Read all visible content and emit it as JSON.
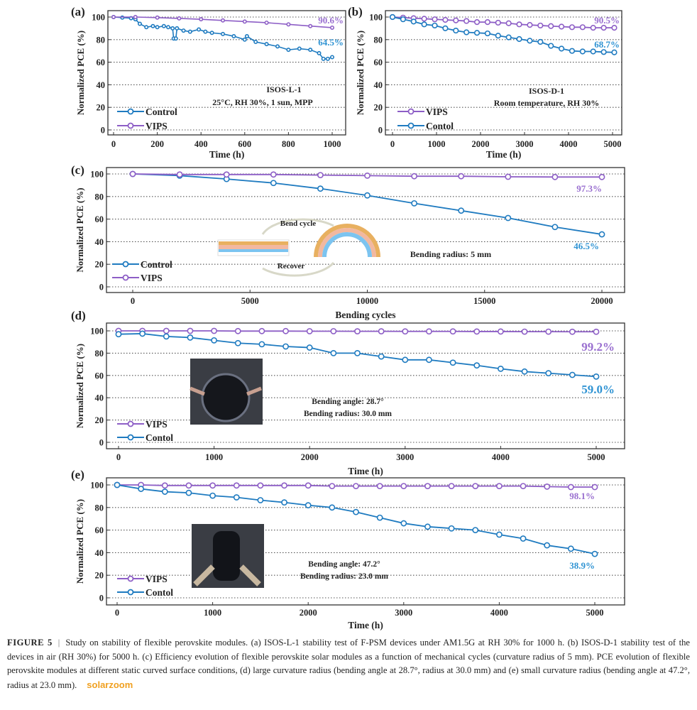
{
  "colors": {
    "control": "#1f7bc0",
    "vips": "#8d5ec6",
    "control_label": "#2f93d3",
    "vips_label": "#9a70d0",
    "grid": "#555555"
  },
  "chart_data": [
    {
      "panel": "(a)",
      "type": "line",
      "xlabel": "Time (h)",
      "ylabel": "Normalized PCE (%)",
      "xlim": [
        0,
        1000
      ],
      "ylim": [
        0,
        100
      ],
      "xticks": [
        0,
        200,
        400,
        600,
        800,
        1000
      ],
      "yticks": [
        0,
        20,
        40,
        60,
        80,
        100
      ],
      "grid": "horizontal dotted",
      "legend_placement": "bottom-left",
      "series": [
        {
          "name": "Control",
          "color_key": "control",
          "x": [
            0,
            40,
            80,
            100,
            120,
            150,
            180,
            200,
            230,
            250,
            270,
            275,
            285,
            290,
            320,
            350,
            390,
            420,
            450,
            500,
            550,
            600,
            610,
            650,
            700,
            750,
            800,
            850,
            900,
            940,
            960,
            980,
            1000
          ],
          "y": [
            100,
            99.5,
            99,
            98,
            94,
            91,
            92,
            91,
            92,
            91,
            90,
            81,
            81,
            90,
            88,
            87,
            89,
            87,
            86,
            85,
            83,
            80,
            83,
            78,
            76,
            74,
            71,
            72,
            71,
            68,
            63,
            63,
            64.5
          ]
        },
        {
          "name": "VIPS",
          "color_key": "vips",
          "x": [
            0,
            100,
            200,
            300,
            400,
            500,
            600,
            700,
            800,
            900,
            1000
          ],
          "y": [
            100,
            100,
            99.5,
            98.8,
            98,
            97,
            96,
            95,
            93.5,
            92,
            90.6
          ]
        }
      ],
      "annotations": [
        "90.6%",
        "64.5%",
        "ISOS-L-1",
        "25°C, RH 30%, 1 sun, MPP"
      ]
    },
    {
      "panel": "(b)",
      "type": "line",
      "xlabel": "Time (h)",
      "ylabel": "Normalized PCE (%)",
      "xlim": [
        0,
        5000
      ],
      "ylim": [
        0,
        100
      ],
      "xticks": [
        0,
        1000,
        2000,
        3000,
        4000,
        5000
      ],
      "yticks": [
        0,
        20,
        40,
        60,
        80,
        100
      ],
      "grid": "horizontal dotted",
      "legend_placement": "bottom-left",
      "series": [
        {
          "name": "VIPS",
          "color_key": "vips",
          "x": [
            0,
            240,
            480,
            720,
            960,
            1200,
            1440,
            1680,
            1920,
            2160,
            2400,
            2640,
            2880,
            3120,
            3360,
            3600,
            3840,
            4080,
            4320,
            4560,
            4800,
            5040
          ],
          "y": [
            100,
            99.5,
            99,
            98.5,
            98,
            97.5,
            97,
            96.5,
            95.5,
            95.5,
            95,
            94.5,
            93.5,
            93,
            92.5,
            92,
            91.5,
            91,
            91,
            90.5,
            90.5,
            90.5
          ]
        },
        {
          "name": "Contol",
          "color_key": "control",
          "x": [
            0,
            240,
            480,
            720,
            960,
            1200,
            1440,
            1680,
            1920,
            2160,
            2400,
            2640,
            2880,
            3120,
            3360,
            3600,
            3840,
            4080,
            4320,
            4560,
            4800,
            5040
          ],
          "y": [
            100,
            98,
            96,
            93.5,
            92.5,
            90,
            88,
            86.5,
            86,
            85.5,
            83.5,
            82,
            80.5,
            79,
            78,
            74.5,
            72,
            70,
            69.5,
            69.5,
            69,
            68.7
          ]
        }
      ],
      "annotations": [
        "90.5%",
        "68.7%",
        "ISOS-D-1",
        "Room temperature, RH 30%"
      ]
    },
    {
      "panel": "(c)",
      "type": "line",
      "xlabel": "Bending cycles",
      "ylabel": "Normalized PCE (%)",
      "xlim": [
        0,
        20000
      ],
      "ylim": [
        0,
        100
      ],
      "xticks": [
        0,
        5000,
        10000,
        15000,
        20000
      ],
      "yticks": [
        0,
        20,
        40,
        60,
        80,
        100
      ],
      "grid": "horizontal dotted",
      "legend_placement": "bottom-left",
      "series": [
        {
          "name": "Control",
          "color_key": "control",
          "x": [
            0,
            2000,
            4000,
            6000,
            8000,
            10000,
            12000,
            14000,
            16000,
            18000,
            20000
          ],
          "y": [
            100,
            98.5,
            95.5,
            92,
            87,
            81,
            74,
            67.5,
            61,
            53,
            46.5
          ]
        },
        {
          "name": "VIPS",
          "color_key": "vips",
          "x": [
            0,
            2000,
            4000,
            6000,
            8000,
            10000,
            12000,
            14000,
            16000,
            18000,
            20000
          ],
          "y": [
            100,
            99.5,
            99.5,
            99.5,
            99,
            98.5,
            98,
            98,
            97.5,
            97.3,
            97.3
          ]
        }
      ],
      "annotations": [
        "97.3%",
        "46.5%",
        "Bending radius: 5 mm",
        "Bend cycle",
        "Recover"
      ]
    },
    {
      "panel": "(d)",
      "type": "line",
      "xlabel": "Time (h)",
      "ylabel": "Normalized PCE (%)",
      "xlim": [
        0,
        5000
      ],
      "ylim": [
        0,
        100
      ],
      "xticks": [
        0,
        1000,
        2000,
        3000,
        4000,
        5000
      ],
      "yticks": [
        0,
        20,
        40,
        60,
        80,
        100
      ],
      "grid": "horizontal dotted",
      "legend_placement": "bottom-left",
      "series": [
        {
          "name": "VIPS",
          "color_key": "vips",
          "x": [
            0,
            250,
            500,
            750,
            1000,
            1250,
            1500,
            1750,
            2000,
            2250,
            2500,
            2750,
            3000,
            3250,
            3500,
            3750,
            4000,
            4250,
            4500,
            4750,
            5000
          ],
          "y": [
            100,
            100,
            100,
            100,
            100,
            99.8,
            99.8,
            99.8,
            99.7,
            99.7,
            99.6,
            99.6,
            99.5,
            99.5,
            99.5,
            99.4,
            99.4,
            99.3,
            99.3,
            99.2,
            99.2
          ]
        },
        {
          "name": "Contol",
          "color_key": "control",
          "x": [
            0,
            250,
            500,
            750,
            1000,
            1250,
            1500,
            1750,
            2000,
            2250,
            2500,
            2750,
            3000,
            3250,
            3500,
            3750,
            4000,
            4250,
            4500,
            4750,
            5000
          ],
          "y": [
            97,
            97.5,
            95,
            94,
            91.5,
            89,
            88,
            86,
            85,
            80,
            80,
            77,
            74,
            74,
            71.5,
            69,
            66,
            63.5,
            62,
            60.5,
            59.0
          ]
        }
      ],
      "annotations": [
        "99.2%",
        "59.0%",
        "Bending angle: 28.7°",
        "Bending radius: 30.0 mm"
      ]
    },
    {
      "panel": "(e)",
      "type": "line",
      "xlabel": "Time (h)",
      "ylabel": "Normalized PCE (%)",
      "xlim": [
        0,
        5000
      ],
      "ylim": [
        0,
        100
      ],
      "xticks": [
        0,
        1000,
        2000,
        3000,
        4000,
        5000
      ],
      "yticks": [
        0,
        20,
        40,
        60,
        80,
        100
      ],
      "grid": "horizontal dotted",
      "legend_placement": "bottom-left",
      "series": [
        {
          "name": "VIPS",
          "color_key": "vips",
          "x": [
            0,
            250,
            500,
            750,
            1000,
            1250,
            1500,
            1750,
            2000,
            2250,
            2500,
            2750,
            3000,
            3250,
            3500,
            3750,
            4000,
            4250,
            4500,
            4750,
            5000
          ],
          "y": [
            100,
            100,
            99.5,
            99.5,
            99.5,
            99.5,
            99.5,
            99.5,
            99.5,
            99,
            99,
            99,
            99,
            99,
            99,
            99,
            99,
            99,
            98.5,
            98.1,
            98.1
          ]
        },
        {
          "name": "Contol",
          "color_key": "control",
          "x": [
            0,
            250,
            500,
            750,
            1000,
            1250,
            1500,
            1750,
            2000,
            2250,
            2500,
            2750,
            3000,
            3250,
            3500,
            3750,
            4000,
            4250,
            4500,
            4750,
            5000
          ],
          "y": [
            100,
            96.5,
            94,
            93,
            90.5,
            89,
            86.5,
            84.5,
            82,
            80,
            76,
            71,
            66,
            63,
            61.5,
            60,
            56,
            52.5,
            46.5,
            43.5,
            38.9
          ]
        }
      ],
      "annotations": [
        "98.1%",
        "38.9%",
        "Bending angle: 47.2°",
        "Bending radius: 23.0 mm"
      ]
    }
  ],
  "caption": {
    "label": "FIGURE 5",
    "text": "Study on stability of flexible perovskite modules. (a) ISOS-L-1 stability test of F-PSM devices under AM1.5G at RH 30% for 1000 h. (b) ISOS-D-1 stability test of the devices in air (RH 30%) for 5000 h. (c) Efficiency evolution of flexible perovskite solar modules as a function of mechanical cycles (curvature radius of 5 mm). PCE evolution of flexible perovskite modules at different static curved surface conditions, (d) large curvature radius (bending angle at 28.7°, radius at 30.0 mm) and (e) small curvature radius (bending angle at 47.2°, radius at 23.0 mm)."
  },
  "watermark": "solarzoom"
}
